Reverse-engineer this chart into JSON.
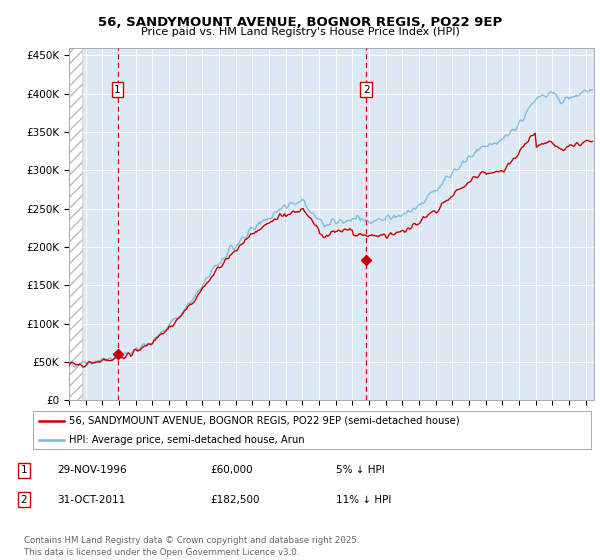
{
  "title_line1": "56, SANDYMOUNT AVENUE, BOGNOR REGIS, PO22 9EP",
  "title_line2": "Price paid vs. HM Land Registry's House Price Index (HPI)",
  "background_color": "#ffffff",
  "plot_bg_color": "#dce9f5",
  "grid_color": "#ffffff",
  "hpi_color": "#7ab8d9",
  "price_color": "#cc0000",
  "marker_color": "#cc0000",
  "xmin_year": 1994.0,
  "xmax_year": 2025.5,
  "ymin": 0,
  "ymax": 460000,
  "yticks": [
    0,
    50000,
    100000,
    150000,
    200000,
    250000,
    300000,
    350000,
    400000,
    450000
  ],
  "ytick_labels": [
    "£0",
    "£50K",
    "£100K",
    "£150K",
    "£200K",
    "£250K",
    "£300K",
    "£350K",
    "£400K",
    "£450K"
  ],
  "xtick_years": [
    1994,
    1995,
    1996,
    1997,
    1998,
    1999,
    2000,
    2001,
    2002,
    2003,
    2004,
    2005,
    2006,
    2007,
    2008,
    2009,
    2010,
    2011,
    2012,
    2013,
    2014,
    2015,
    2016,
    2017,
    2018,
    2019,
    2020,
    2021,
    2022,
    2023,
    2024,
    2025
  ],
  "legend_label_price": "56, SANDYMOUNT AVENUE, BOGNOR REGIS, PO22 9EP (semi-detached house)",
  "legend_label_hpi": "HPI: Average price, semi-detached house, Arun",
  "sale1_year": 1996.91,
  "sale1_price": 60000,
  "sale1_label": "1",
  "sale2_year": 2011.83,
  "sale2_price": 182500,
  "sale2_label": "2",
  "annotation1_date": "29-NOV-1996",
  "annotation1_price": "£60,000",
  "annotation1_hpi": "5% ↓ HPI",
  "annotation2_date": "31-OCT-2011",
  "annotation2_price": "£182,500",
  "annotation2_hpi": "11% ↓ HPI",
  "footer": "Contains HM Land Registry data © Crown copyright and database right 2025.\nThis data is licensed under the Open Government Licence v3.0.",
  "hatch_xmin": 1994.0,
  "hatch_xmax": 1994.75
}
